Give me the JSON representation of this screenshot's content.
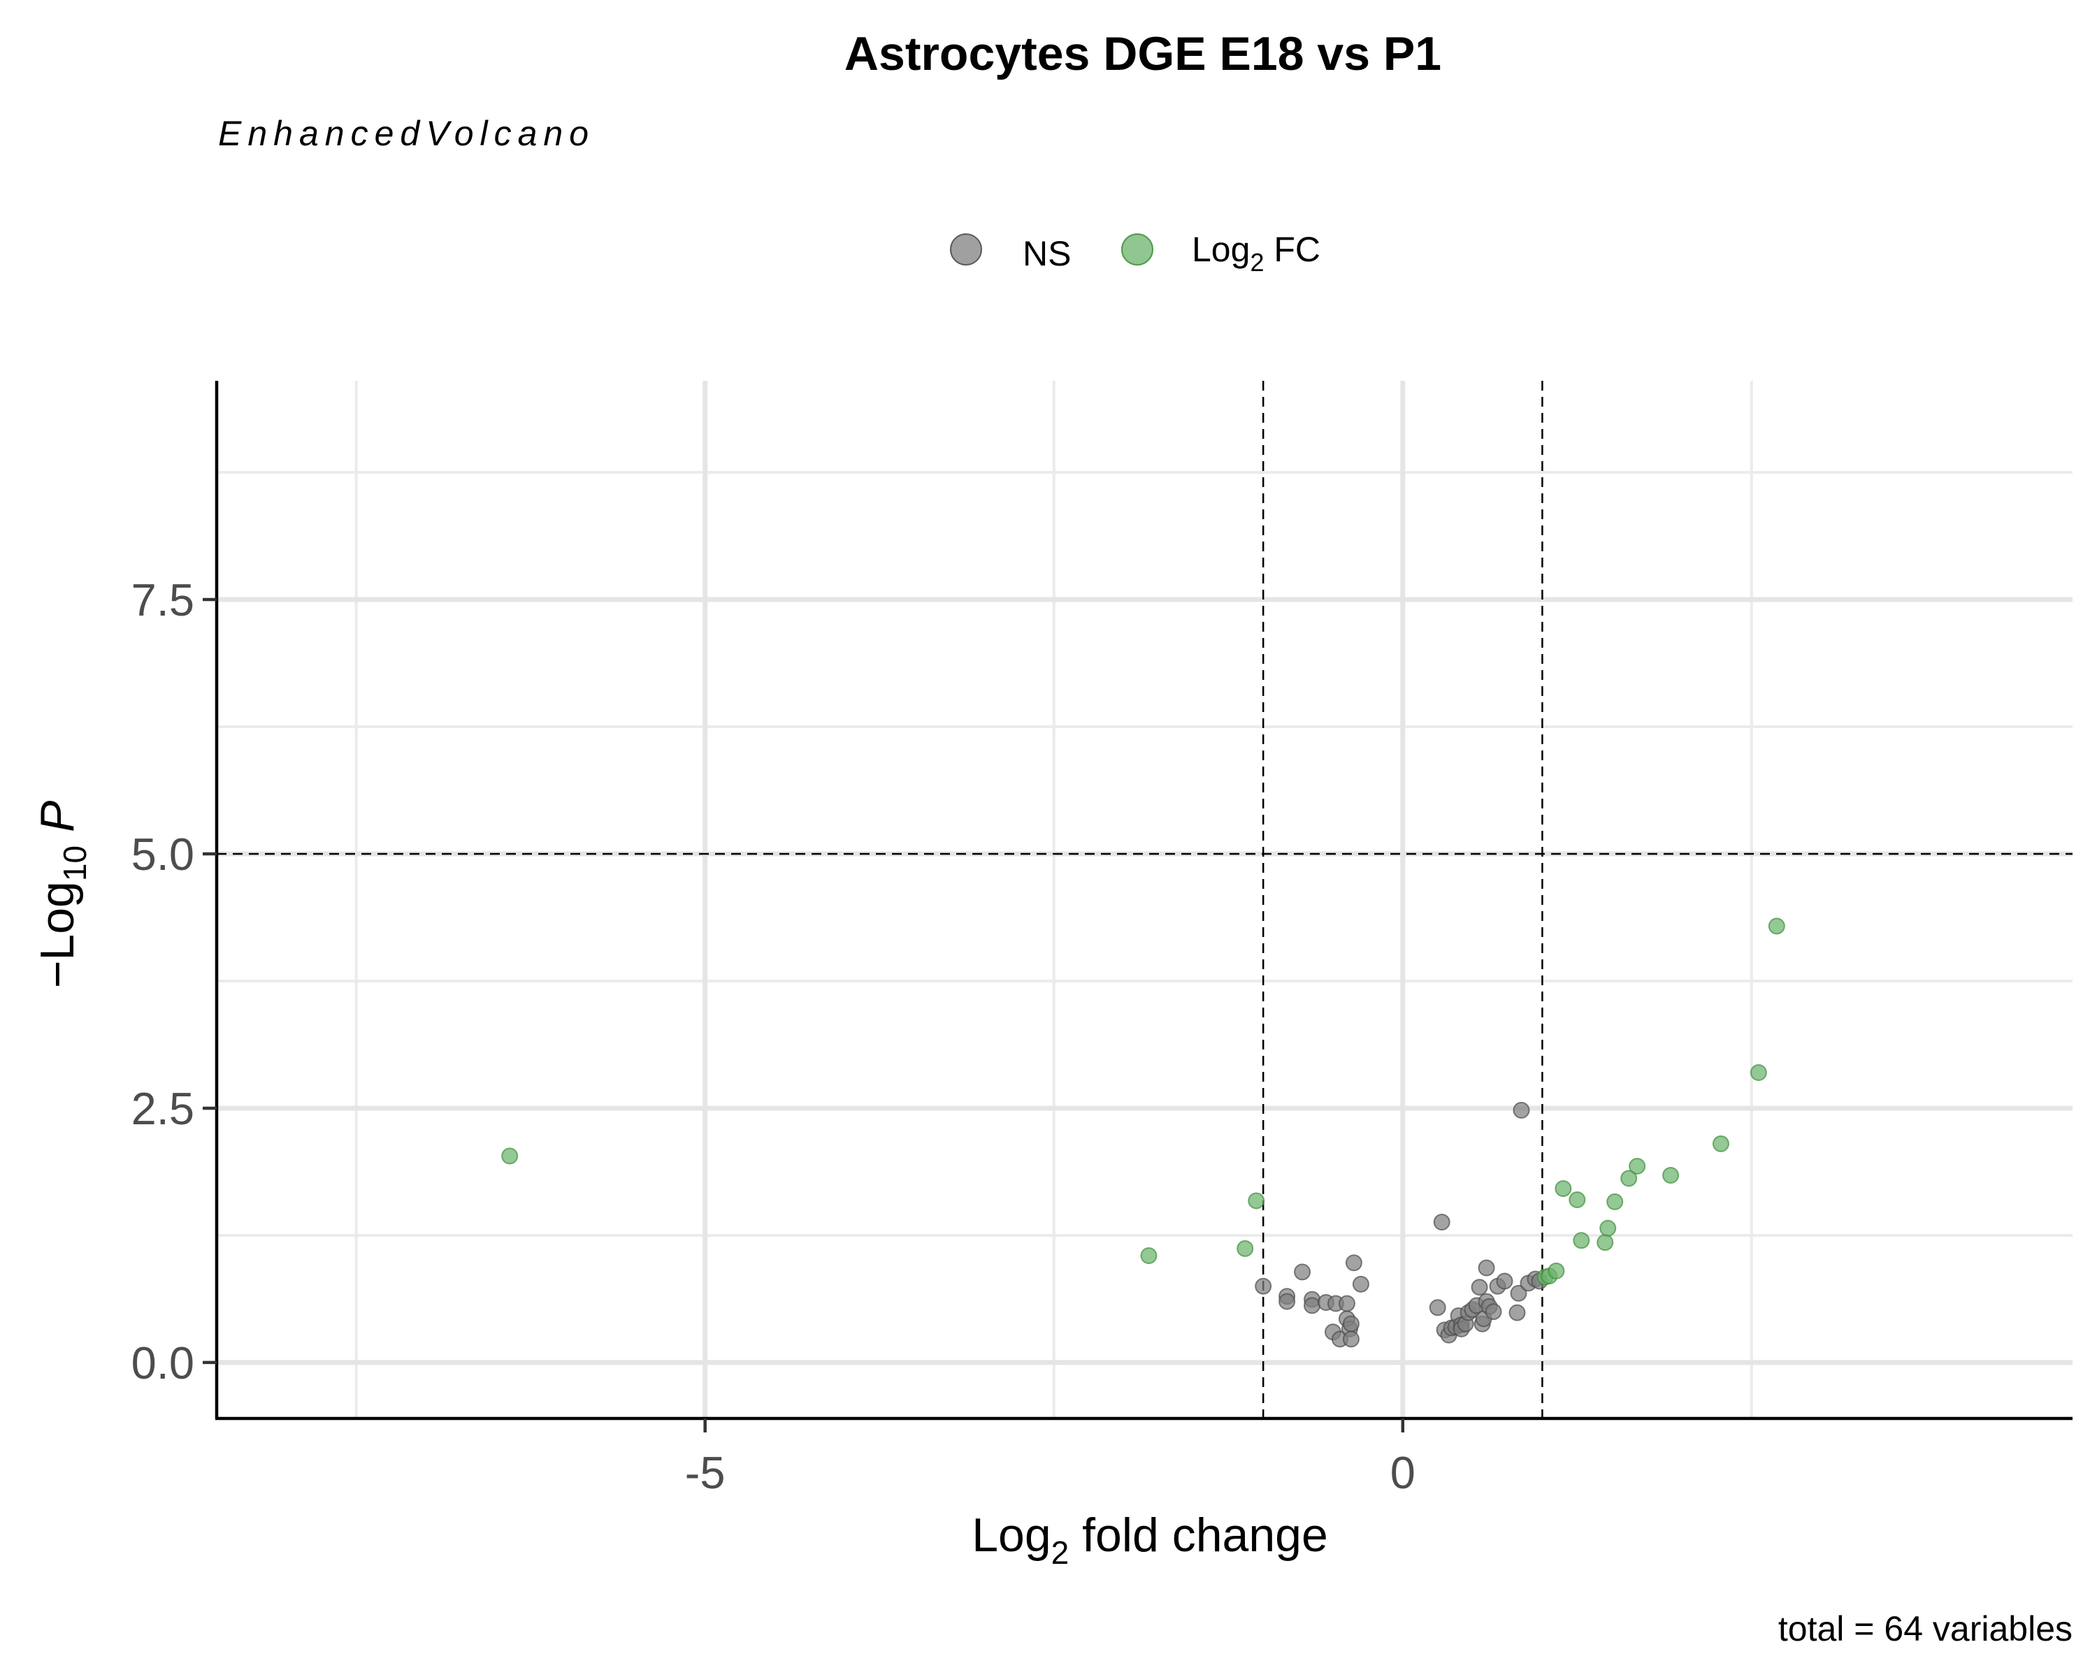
{
  "chart_data": {
    "type": "scatter",
    "title": "Astrocytes DGE E18 vs P1",
    "subtitle": "EnhancedVolcano",
    "xlabel": {
      "base": "Log",
      "sub": "2",
      "rest": " fold change"
    },
    "ylabel": {
      "prefix": "−Log",
      "sub": "10",
      "rest": " P"
    },
    "caption": "total = 64 variables",
    "xlim": [
      -8.5,
      4.8
    ],
    "ylim": [
      -0.55,
      9.65
    ],
    "x_ticks": [
      -5,
      0
    ],
    "x_tick_labels": [
      "-5",
      "0"
    ],
    "y_ticks": [
      0,
      2.5,
      5,
      7.5
    ],
    "y_tick_labels": [
      "0.0",
      "2.5",
      "5.0",
      "7.5"
    ],
    "grid": true,
    "cutoffs": {
      "log2fc": 1,
      "pvalue_log10": 5
    },
    "legend": {
      "placement": "top",
      "entries": [
        {
          "name": "NS",
          "color": "#808080"
        },
        {
          "name": "Log2 FC",
          "base": "Log",
          "sub": "2",
          "rest": " FC",
          "color": "#6bb36b"
        }
      ]
    },
    "series": [
      {
        "name": "NS",
        "color": "#808080",
        "points": [
          [
            -1.0,
            0.75
          ],
          [
            -0.83,
            0.65
          ],
          [
            -0.83,
            0.6
          ],
          [
            -0.72,
            0.89
          ],
          [
            -0.65,
            0.62
          ],
          [
            -0.65,
            0.56
          ],
          [
            -0.55,
            0.59
          ],
          [
            -0.5,
            0.3
          ],
          [
            -0.48,
            0.58
          ],
          [
            -0.45,
            0.23
          ],
          [
            -0.4,
            0.43
          ],
          [
            -0.4,
            0.58
          ],
          [
            -0.38,
            0.33
          ],
          [
            -0.37,
            0.38
          ],
          [
            -0.37,
            0.23
          ],
          [
            -0.35,
            0.98
          ],
          [
            -0.3,
            0.77
          ],
          [
            0.25,
            0.54
          ],
          [
            0.28,
            1.38
          ],
          [
            0.3,
            0.32
          ],
          [
            0.33,
            0.27
          ],
          [
            0.35,
            0.34
          ],
          [
            0.38,
            0.35
          ],
          [
            0.4,
            0.46
          ],
          [
            0.42,
            0.37
          ],
          [
            0.42,
            0.33
          ],
          [
            0.45,
            0.38
          ],
          [
            0.47,
            0.49
          ],
          [
            0.5,
            0.52
          ],
          [
            0.53,
            0.56
          ],
          [
            0.55,
            0.74
          ],
          [
            0.57,
            0.38
          ],
          [
            0.58,
            0.43
          ],
          [
            0.6,
            0.93
          ],
          [
            0.6,
            0.6
          ],
          [
            0.62,
            0.55
          ],
          [
            0.65,
            0.5
          ],
          [
            0.68,
            0.75
          ],
          [
            0.73,
            0.8
          ],
          [
            0.82,
            0.49
          ],
          [
            0.83,
            0.68
          ],
          [
            0.85,
            2.48
          ],
          [
            0.9,
            0.78
          ],
          [
            0.95,
            0.82
          ],
          [
            0.98,
            0.8
          ]
        ]
      },
      {
        "name": "Log2 FC",
        "color": "#6bb36b",
        "points": [
          [
            -6.4,
            2.03
          ],
          [
            -1.82,
            1.05
          ],
          [
            -1.13,
            1.12
          ],
          [
            -1.05,
            1.59
          ],
          [
            1.02,
            0.84
          ],
          [
            1.05,
            0.85
          ],
          [
            1.1,
            0.9
          ],
          [
            1.15,
            1.71
          ],
          [
            1.25,
            1.6
          ],
          [
            1.28,
            1.2
          ],
          [
            1.45,
            1.18
          ],
          [
            1.47,
            1.32
          ],
          [
            1.52,
            1.58
          ],
          [
            1.62,
            1.81
          ],
          [
            1.68,
            1.93
          ],
          [
            1.92,
            1.84
          ],
          [
            2.28,
            2.15
          ],
          [
            2.55,
            2.85
          ],
          [
            2.68,
            4.29
          ]
        ]
      }
    ]
  }
}
